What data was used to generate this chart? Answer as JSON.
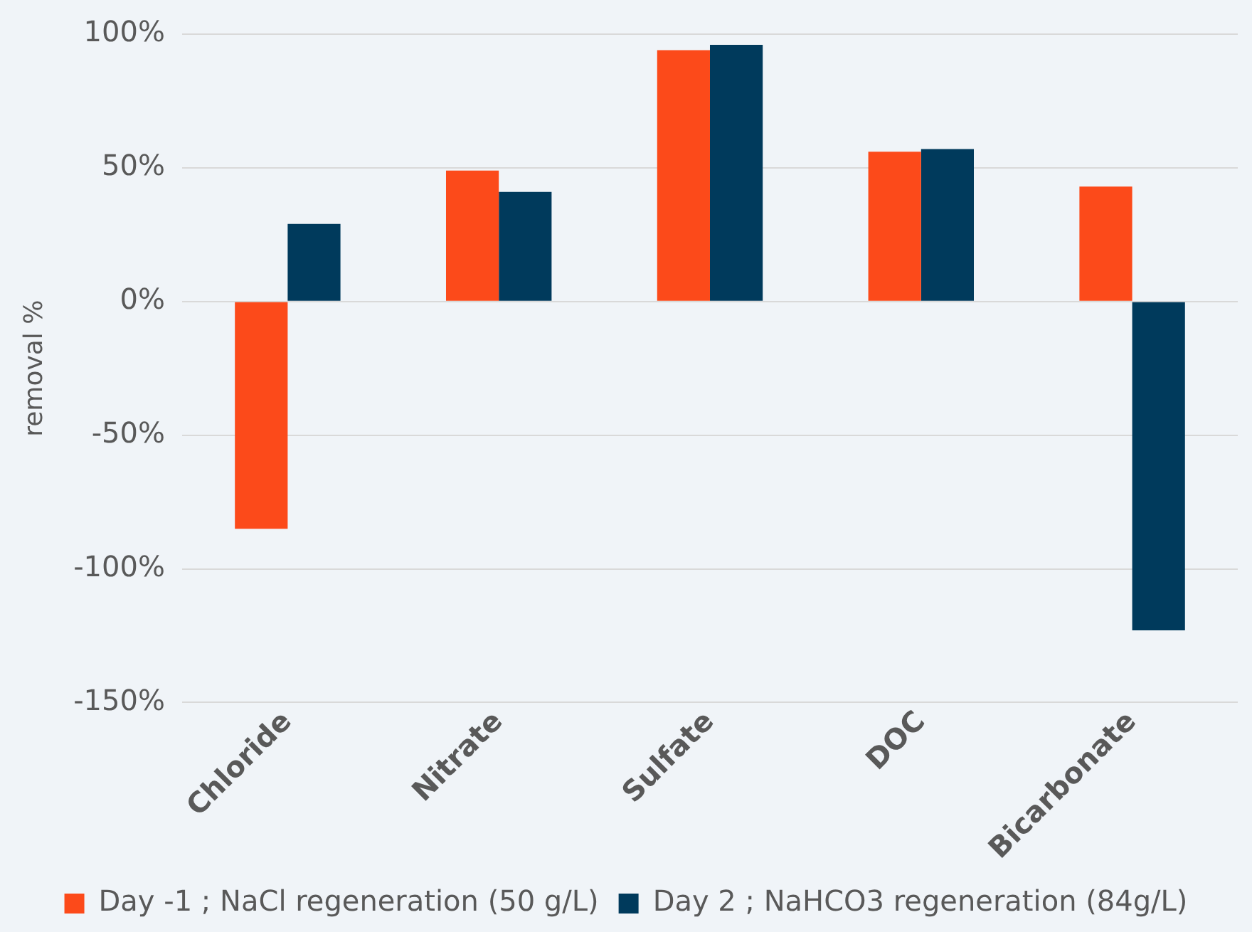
{
  "chart_data": {
    "type": "bar",
    "ylabel": "removal %",
    "categories": [
      "Chloride",
      "Nitrate",
      "Sulfate",
      "DOC",
      "Bicarbonate"
    ],
    "series": [
      {
        "name": "Day -1 ; NaCl regeneration (50 g/L)",
        "color": "#fc4a1a",
        "values": [
          -85,
          49,
          94,
          56,
          43
        ]
      },
      {
        "name": "Day 2 ; NaHCO3 regeneration (84g/L)",
        "color": "#003a5c",
        "values": [
          29,
          41,
          96,
          57,
          -123
        ]
      }
    ],
    "ylim": [
      -150,
      100
    ],
    "yticks": [
      {
        "value": -150,
        "label": "-150%"
      },
      {
        "value": -100,
        "label": "-100%"
      },
      {
        "value": -50,
        "label": "-50%"
      },
      {
        "value": 0,
        "label": "0%"
      },
      {
        "value": 50,
        "label": "50%"
      },
      {
        "value": 100,
        "label": "100%"
      }
    ],
    "grid": "y",
    "legend": "bottom"
  }
}
